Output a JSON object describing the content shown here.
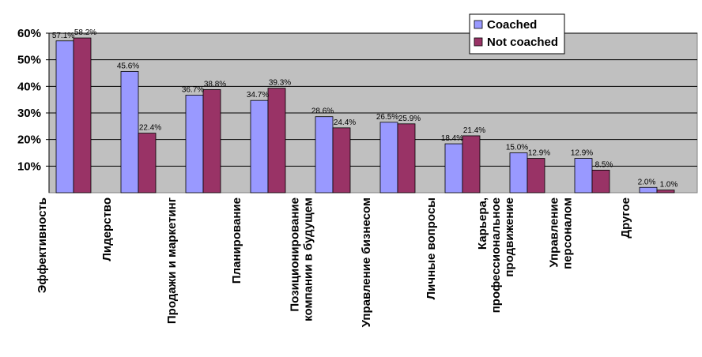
{
  "chart_data": {
    "type": "bar",
    "categories": [
      [
        "Эффективность"
      ],
      [
        "Лидерство"
      ],
      [
        "Продажи и маркетинг"
      ],
      [
        "Планирование"
      ],
      [
        "Позиционирование",
        "компании в будущем"
      ],
      [
        "Управление бизнесом"
      ],
      [
        "Личные вопросы"
      ],
      [
        "Карьера,",
        "профессиональное",
        "продвижение"
      ],
      [
        "Управление",
        "персоналом"
      ],
      [
        "Другое"
      ]
    ],
    "series": [
      {
        "name": "Coached",
        "color": "#9999ff",
        "values": [
          57.1,
          45.6,
          36.7,
          34.7,
          28.6,
          26.5,
          18.4,
          15.0,
          12.9,
          2.0
        ],
        "labels": [
          "57.1%",
          "45.6%",
          "36.7%",
          "34.7%",
          "28.6%",
          "26.5%",
          "18.4%",
          "15.0%",
          "12.9%",
          "2.0%"
        ]
      },
      {
        "name": "Not coached",
        "color": "#993366",
        "values": [
          58.2,
          22.4,
          38.8,
          39.3,
          24.4,
          25.9,
          21.4,
          12.9,
          8.5,
          1.0
        ],
        "labels": [
          "58.2%",
          "22.4%",
          "38.8%",
          "39.3%",
          "24.4%",
          "25.9%",
          "21.4%",
          "12.9%",
          "8.5%",
          "1.0%"
        ]
      }
    ],
    "yticks": [
      "10%",
      "20%",
      "30%",
      "40%",
      "50%",
      "60%"
    ],
    "ytick_values": [
      10,
      20,
      30,
      40,
      50,
      60
    ],
    "ylim": [
      0,
      60
    ],
    "grid": true,
    "legend_position": "top-right",
    "plot_background": "#c0c0c0"
  }
}
